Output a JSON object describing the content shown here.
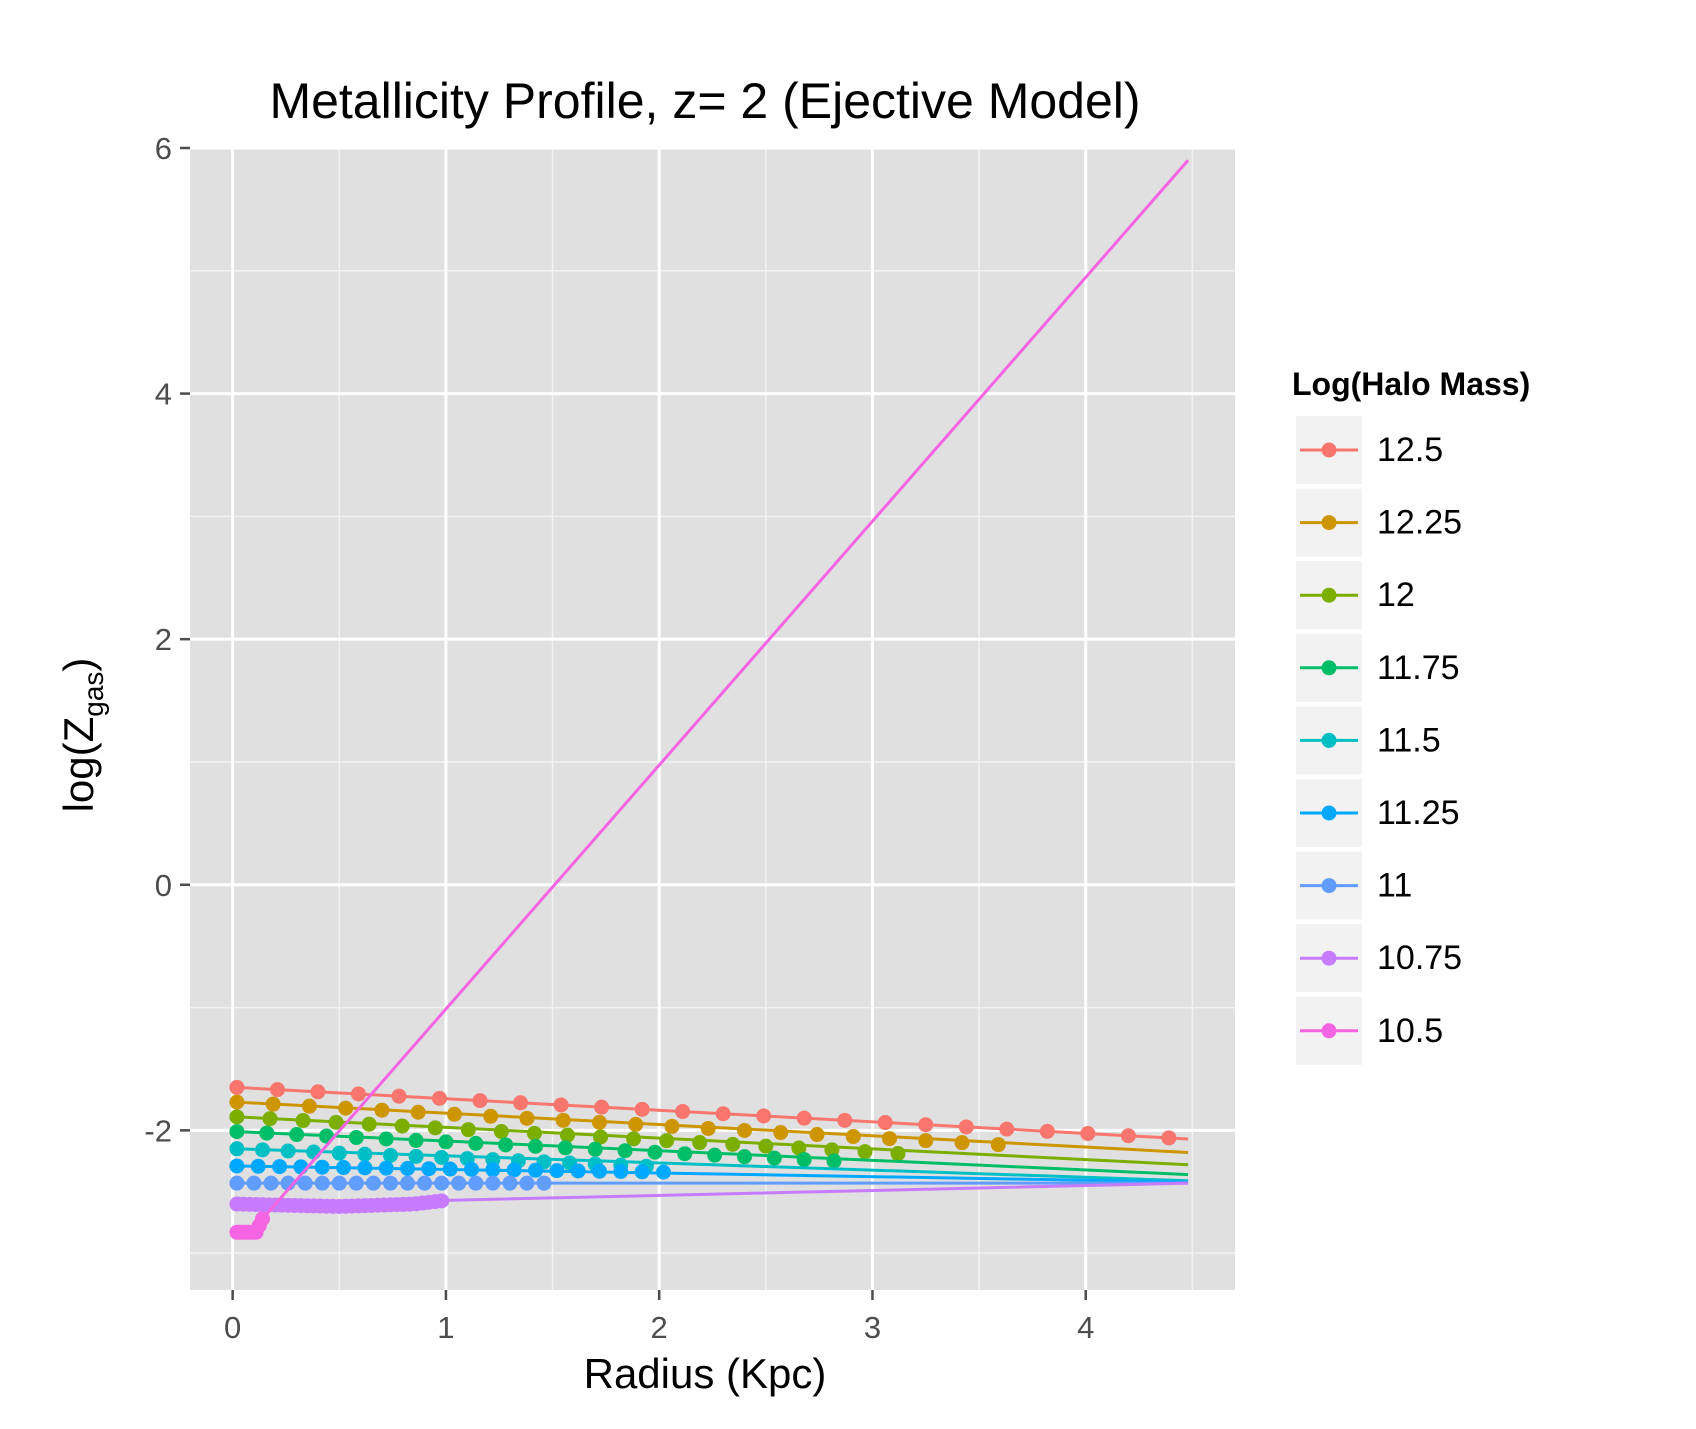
{
  "chart_data": {
    "type": "line",
    "title": "Metallicity Profile, z= 2 (Ejective Model)",
    "xlabel": "Radius (Kpc)",
    "ylabel": "log(Z",
    "ylabel_sub": "gas",
    "ylabel_close": ")",
    "xlim": [
      -0.2,
      4.7
    ],
    "ylim": [
      -3.3,
      6.0
    ],
    "x_ticks": [
      0,
      1,
      2,
      3,
      4
    ],
    "x_tick_labels": [
      "0",
      "1",
      "2",
      "3",
      "4"
    ],
    "y_ticks": [
      -2,
      0,
      2,
      4,
      6
    ],
    "y_tick_labels": [
      "-2",
      "0",
      "2",
      "4",
      "6"
    ],
    "grid": true,
    "legend_position": "right",
    "legend_title": "Log(Halo Mass)",
    "panel_background": "#E0E0E0",
    "series": [
      {
        "name": "12.5",
        "color": "#F8766D",
        "line": {
          "x": [
            0.02,
            4.48
          ],
          "y": [
            -1.65,
            -2.07
          ]
        },
        "point_radius_max": 4.48,
        "point_step": 0.19,
        "point_y_end": -2.07
      },
      {
        "name": "12.25",
        "color": "#CD9600",
        "line": {
          "x": [
            0.02,
            4.48
          ],
          "y": [
            -1.77,
            -2.18
          ]
        },
        "point_radius_max": 3.73,
        "point_step": 0.17,
        "point_y_end": -2.13
      },
      {
        "name": "12",
        "color": "#7CAE00",
        "line": {
          "x": [
            0.02,
            4.48
          ],
          "y": [
            -1.89,
            -2.28
          ]
        },
        "point_radius_max": 3.24,
        "point_step": 0.155,
        "point_y_end": -2.2
      },
      {
        "name": "11.75",
        "color": "#00BE67",
        "line": {
          "x": [
            0.02,
            4.48
          ],
          "y": [
            -2.01,
            -2.36
          ]
        },
        "point_radius_max": 2.82,
        "point_step": 0.14,
        "point_y_end": -2.25
      },
      {
        "name": "11.5",
        "color": "#00BFC4",
        "line": {
          "x": [
            0.02,
            4.48
          ],
          "y": [
            -2.15,
            -2.41
          ]
        },
        "point_radius_max": 2.05,
        "point_step": 0.12,
        "point_y_end": -2.3
      },
      {
        "name": "11.25",
        "color": "#00A9FF",
        "line": {
          "x": [
            0.02,
            4.48
          ],
          "y": [
            -2.29,
            -2.42
          ]
        },
        "point_radius_max": 2.02,
        "point_step": 0.1,
        "point_y_end": -2.34
      },
      {
        "name": "11",
        "color": "#619CFF",
        "line": {
          "x": [
            0.02,
            4.48
          ],
          "y": [
            -2.43,
            -2.43
          ]
        },
        "point_radius_max": 1.5,
        "point_step": 0.08,
        "point_y_end": -2.43
      },
      {
        "name": "10.75",
        "color": "#C77CFF",
        "line": {
          "x": [
            0.02,
            0.25,
            0.5,
            0.85,
            1.0,
            4.48
          ],
          "y": [
            -2.6,
            -2.61,
            -2.62,
            -2.6,
            -2.57,
            -2.43
          ]
        },
        "point_radius_max": 0.98,
        "point_step": 0.03,
        "point_y_end": -2.57
      },
      {
        "name": "10.5",
        "color": "#F564E3",
        "line": {
          "x": [
            0.02,
            0.11,
            0.14,
            4.48
          ],
          "y": [
            -2.83,
            -2.83,
            -2.72,
            5.9
          ]
        },
        "point_radius_max": 0.14,
        "point_step": 0.015,
        "point_y_end": -2.72
      }
    ]
  }
}
